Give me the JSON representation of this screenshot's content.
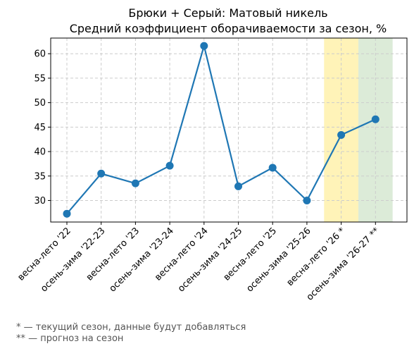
{
  "chart_data": {
    "type": "line",
    "title": "Брюки + Серый: Матовый никель",
    "subtitle": "Средний коэффициент оборачиваемости за сезон, %",
    "xlabel": "",
    "ylabel": "",
    "categories": [
      "весна-лето '22",
      "осень-зима '22-23",
      "весна-лето '23",
      "осень-зима '23-24",
      "весна-лето '24",
      "осень-зима '24-25",
      "весна-лето '25",
      "осень-зима '25-26",
      "весна-лето '26 *",
      "осень-зима '26-27 **"
    ],
    "series": [
      {
        "values": [
          27.3,
          35.5,
          33.5,
          37.1,
          61.6,
          32.9,
          36.7,
          30.0,
          43.4,
          46.6
        ],
        "color": "#1f77b4"
      }
    ],
    "ylim": [
      25.6,
      63.2
    ],
    "yticks": [
      30,
      35,
      40,
      45,
      50,
      55,
      60
    ],
    "grid": true,
    "highlights": [
      {
        "category": "весна-лето '26 *",
        "color": "#fff3b8"
      },
      {
        "category": "осень-зима '26-27 **",
        "color": "#dcebd8"
      }
    ]
  },
  "footnotes": [
    "* — текущий сезон, данные будут добавляться",
    "** — прогноз на сезон"
  ]
}
